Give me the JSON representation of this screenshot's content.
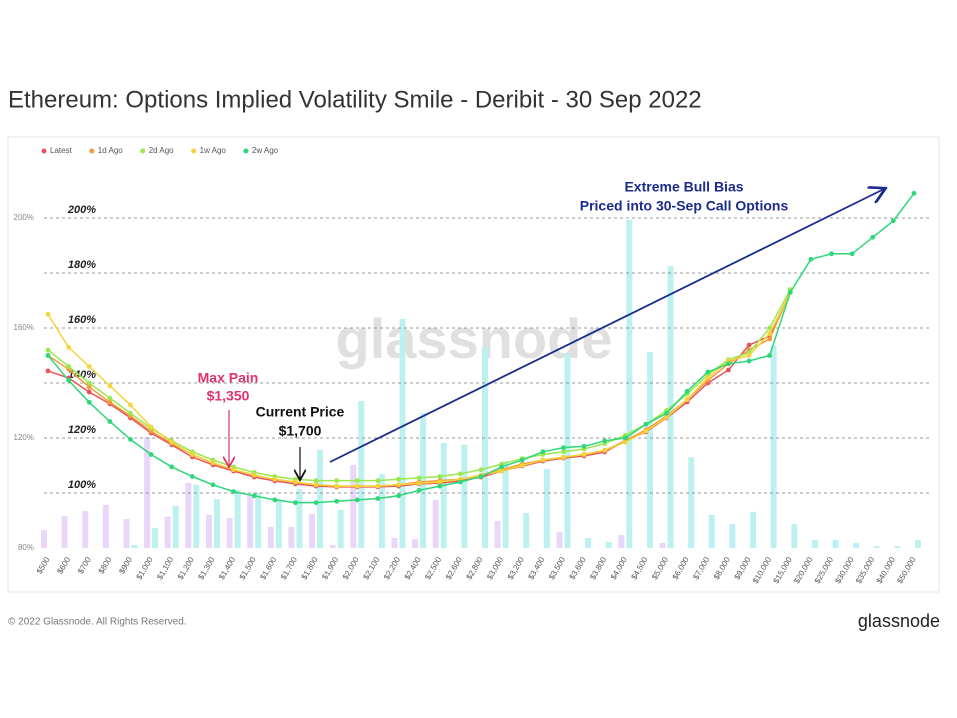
{
  "chart_data": {
    "type": "line",
    "title": "Ethereum: Options Implied Volatility Smile - Deribit - 30 Sep 2022",
    "watermark": "glassnode",
    "categories": [
      "$500",
      "$600",
      "$700",
      "$800",
      "$900",
      "$1,000",
      "$1,100",
      "$1,200",
      "$1,300",
      "$1,400",
      "$1,500",
      "$1,600",
      "$1,700",
      "$1,800",
      "$1,900",
      "$2,000",
      "$2,100",
      "$2,200",
      "$2,400",
      "$2,500",
      "$2,600",
      "$2,800",
      "$3,000",
      "$3,200",
      "$3,400",
      "$3,500",
      "$3,600",
      "$3,800",
      "$4,000",
      "$4,500",
      "$5,000",
      "$6,000",
      "$7,000",
      "$8,000",
      "$9,000",
      "$10,000",
      "$15,000",
      "$20,000",
      "$25,000",
      "$30,000",
      "$35,000",
      "$40,000",
      "$50,000"
    ],
    "ylim": [
      80,
      220
    ],
    "yticks": [
      {
        "value": 80,
        "label": "80%"
      },
      {
        "value": 120,
        "label": "120%"
      },
      {
        "value": 160,
        "label": "160%"
      },
      {
        "value": 200,
        "label": "200%"
      }
    ],
    "reference_lines": [
      {
        "value": 100,
        "label": "100%"
      },
      {
        "value": 120,
        "label": "120%"
      },
      {
        "value": 140,
        "label": "140%"
      },
      {
        "value": 160,
        "label": "160%"
      },
      {
        "value": 180,
        "label": "180%"
      },
      {
        "value": 200,
        "label": "200%"
      }
    ],
    "y2lim": [
      0,
      100
    ],
    "bar_series": [
      {
        "color": "#ead6f8",
        "axis": "y2",
        "values": [
          4.7,
          8.3,
          9.6,
          11.2,
          7.5,
          28.8,
          8.1,
          16.9,
          8.6,
          7.8,
          14,
          5.5,
          5.5,
          8.8,
          0.8,
          21.6,
          0,
          2.6,
          2.3,
          12.5,
          0,
          0,
          7,
          0,
          0,
          4.2,
          0,
          0,
          3.4,
          0,
          1.3,
          0,
          0,
          0,
          0,
          0,
          0,
          0,
          0,
          0,
          0,
          0,
          0
        ]
      },
      {
        "color": "#bdf1f0",
        "axis": "y2",
        "values": [
          0,
          0,
          0,
          0,
          0.8,
          5.2,
          10.9,
          16.4,
          12.7,
          15.1,
          14.3,
          12.7,
          15.3,
          25.5,
          9.9,
          38.2,
          19.2,
          59.5,
          35.1,
          27.3,
          26.8,
          52.2,
          22.6,
          9.1,
          20.5,
          50.6,
          2.6,
          1.6,
          85.2,
          50.9,
          73.2,
          23.6,
          8.6,
          6.2,
          9.4,
          52.6,
          6.2,
          2.1,
          2.1,
          1.3,
          0.5,
          0.5,
          2.1
        ]
      }
    ],
    "series": [
      {
        "name": "Latest",
        "color": "#e8545a",
        "values": [
          144.4,
          141.8,
          136.7,
          132.4,
          127.3,
          121.8,
          117.5,
          113.1,
          110.2,
          108,
          105.8,
          104.4,
          103.3,
          102.5,
          102.2,
          102.2,
          102.2,
          102.5,
          103.3,
          103.6,
          104.4,
          105.8,
          108,
          109.8,
          111.6,
          112.7,
          113.5,
          114.9,
          118.9,
          122.2,
          127.3,
          133.1,
          140,
          144.7,
          153.8,
          157.1,
          173.1,
          null,
          null,
          null,
          null,
          null,
          null
        ]
      },
      {
        "name": "1d Ago",
        "color": "#f39a3c",
        "values": [
          150,
          145,
          138.5,
          133,
          128,
          122.5,
          118,
          114,
          110.9,
          108.5,
          106.5,
          105,
          104,
          103,
          102.5,
          102.5,
          102.5,
          103,
          104,
          104.5,
          105,
          106.5,
          108.5,
          110.5,
          112,
          113,
          114,
          115.5,
          119,
          123,
          128,
          134,
          141,
          147,
          152,
          156,
          173,
          null,
          null,
          null,
          null,
          null,
          null
        ]
      },
      {
        "name": "2d Ago",
        "color": "#9be84f",
        "values": [
          152,
          146,
          140,
          134.5,
          129,
          123.5,
          119,
          115,
          112,
          109.5,
          107.5,
          106,
          105,
          104.5,
          104.5,
          104.5,
          104.5,
          105,
          105.5,
          106,
          107,
          108.5,
          110.5,
          112.5,
          114,
          115,
          116,
          118,
          121,
          125,
          130,
          136,
          143,
          148.5,
          151,
          160,
          174,
          null,
          null,
          null,
          null,
          null,
          null
        ]
      },
      {
        "name": "1w Ago",
        "color": "#f5d43b",
        "values": [
          165,
          153,
          146,
          139,
          132,
          124,
          118.5,
          114,
          111,
          108.5,
          106.5,
          105,
          104,
          103,
          102.5,
          102.5,
          102.5,
          103,
          103.5,
          104,
          105,
          106.5,
          108,
          110,
          112,
          113,
          114,
          115.5,
          118.5,
          122.5,
          127.5,
          134,
          142,
          148,
          150,
          158,
          173,
          null,
          null,
          null,
          null,
          null,
          null
        ]
      },
      {
        "name": "2w Ago",
        "color": "#2fd67a",
        "values": [
          150,
          141,
          133,
          126,
          119.5,
          114,
          109.5,
          106,
          103,
          100.5,
          99,
          97.5,
          96.5,
          96.5,
          97,
          97.5,
          98,
          99,
          101,
          102.5,
          104,
          106,
          109.5,
          112,
          115,
          116.5,
          117,
          119,
          120,
          125,
          129,
          137,
          144,
          147,
          148,
          150,
          173,
          185,
          187,
          187,
          193,
          199,
          209
        ]
      }
    ],
    "grid": false,
    "legend": "top-left",
    "annotations": [
      {
        "lines": [
          "Extreme Bull Bias",
          "Priced into 30-Sep Call Options"
        ],
        "color": "#1c2a8c"
      },
      {
        "lines": [
          "Max Pain",
          "$1,350"
        ],
        "color": "#e0336e"
      },
      {
        "lines": [
          "Current Price",
          "$1,700"
        ],
        "color": "#111111"
      }
    ]
  },
  "footer": {
    "copyright": "© 2022 Glassnode. All Rights Reserved.",
    "logo": "glassnode"
  }
}
